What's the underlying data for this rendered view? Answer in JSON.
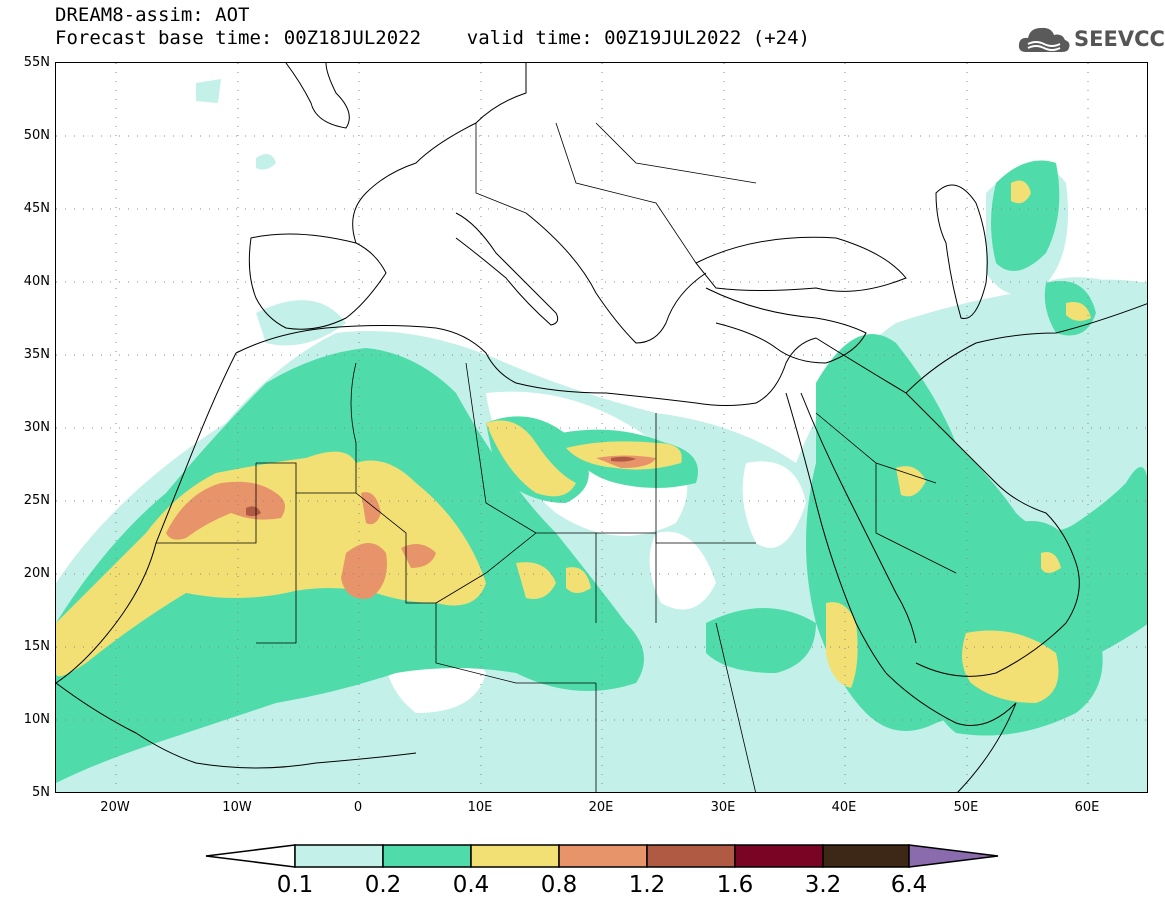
{
  "header": {
    "line1": "DREAM8-assim: AOT",
    "line2": "Forecast base time: 00Z18JUL2022    valid time: 00Z19JUL2022 (+24)"
  },
  "logo": {
    "text": "SEEVCCC",
    "icon": "cloud-icon"
  },
  "axes": {
    "y_ticks": [
      "55N",
      "50N",
      "45N",
      "40N",
      "35N",
      "30N",
      "25N",
      "20N",
      "15N",
      "10N",
      "5N"
    ],
    "x_ticks": [
      "20W",
      "10W",
      "0",
      "10E",
      "20E",
      "30E",
      "40E",
      "50E",
      "60E"
    ],
    "lon_range": [
      -25,
      65
    ],
    "lat_range": [
      5,
      55
    ],
    "grid": "dotted"
  },
  "colorbar": {
    "labels": [
      "0.1",
      "0.2",
      "0.4",
      "0.8",
      "1.2",
      "1.6",
      "3.2",
      "6.4"
    ],
    "colors": [
      "#ffffff",
      "#c3f0e8",
      "#4fdcaa",
      "#f2e074",
      "#e8946a",
      "#b05a43",
      "#7a0424",
      "#3d2818",
      "#8a6bad"
    ]
  }
}
